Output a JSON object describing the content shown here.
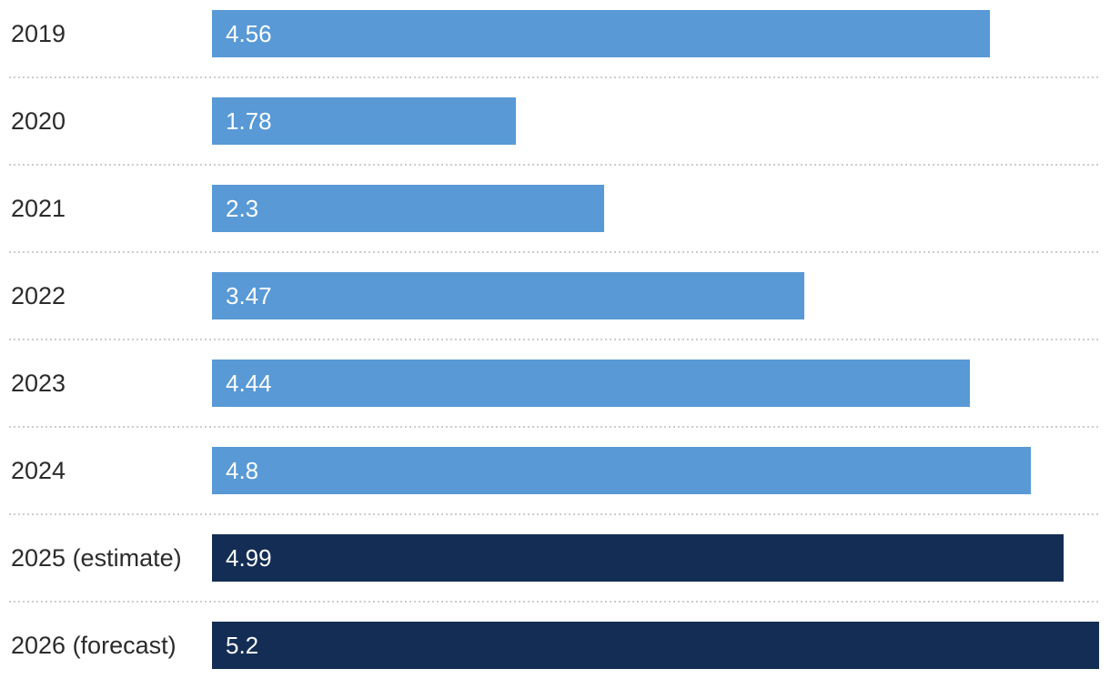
{
  "chart_data": {
    "type": "bar",
    "orientation": "horizontal",
    "title": "",
    "xlabel": "",
    "ylabel": "",
    "categories": [
      "2019",
      "2020",
      "2021",
      "2022",
      "2023",
      "2024",
      "2025 (estimate)",
      "2026 (forecast)"
    ],
    "values": [
      4.56,
      1.78,
      2.3,
      3.47,
      4.44,
      4.8,
      4.99,
      5.2
    ],
    "value_labels": [
      "4.56",
      "1.78",
      "2.3",
      "3.47",
      "4.44",
      "4.8",
      "4.99",
      "5.2"
    ],
    "bar_colors": [
      "#5899d6",
      "#5899d6",
      "#5899d6",
      "#5899d6",
      "#5899d6",
      "#5899d6",
      "#142d55",
      "#142d55"
    ],
    "xlim": [
      0,
      5.26
    ],
    "grid": false,
    "legend": false,
    "value_label_position": "inside-start",
    "separator_style": "dotted"
  },
  "colors": {
    "bar_default": "#5899d6",
    "bar_highlight": "#142d55",
    "category_label": "#2b2b2b",
    "value_label": "#ffffff",
    "separator": "#cccccc",
    "background": "#ffffff"
  }
}
